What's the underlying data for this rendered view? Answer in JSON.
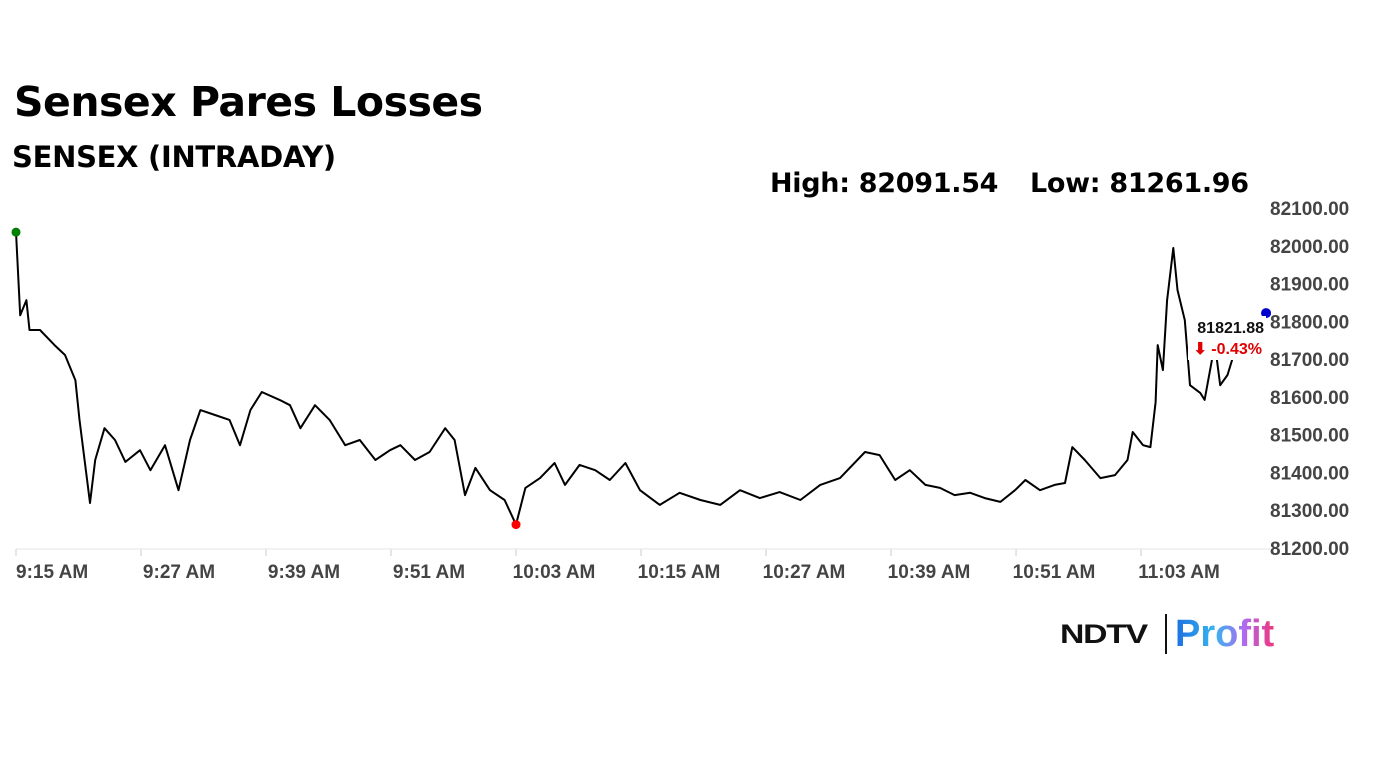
{
  "header": {
    "title": "Sensex Pares Losses",
    "subtitle": "SENSEX (INTRADAY)",
    "high_label": "High: 82091.54",
    "low_label": "Low: 81261.96"
  },
  "last_price": {
    "value": "81821.88",
    "change": "⬇ -0.43%"
  },
  "logo": {
    "brand": "NDTV",
    "product": "Profit"
  },
  "colors": {
    "line": "#000000",
    "open_dot": "#008000",
    "low_dot": "#ff0000",
    "last_dot": "#0000cc",
    "change": "#e00000"
  },
  "chart_data": {
    "type": "line",
    "title": "SENSEX (INTRADAY)",
    "xlabel": "",
    "ylabel": "",
    "x_unit": "minutes after 9:15 AM",
    "xlim": [
      0,
      120
    ],
    "ylim": [
      81200,
      82100
    ],
    "grid": false,
    "yticks": [
      "81200.00",
      "81300.00",
      "81400.00",
      "81500.00",
      "81600.00",
      "81700.00",
      "81800.00",
      "81900.00",
      "82000.00",
      "82100.00"
    ],
    "xticks": [
      "9:15 AM",
      "9:27 AM",
      "9:39 AM",
      "9:51 AM",
      "10:03 AM",
      "10:15 AM",
      "10:27 AM",
      "10:39 AM",
      "10:51 AM",
      "11:03 AM"
    ],
    "points": [
      [
        0,
        82036
      ],
      [
        0.4,
        81816
      ],
      [
        1.0,
        81856
      ],
      [
        1.3,
        81777
      ],
      [
        2.3,
        81777
      ],
      [
        3.7,
        81737
      ],
      [
        4.7,
        81711
      ],
      [
        5.7,
        81644
      ],
      [
        6.1,
        81539
      ],
      [
        7.1,
        81319
      ],
      [
        7.6,
        81433
      ],
      [
        8.5,
        81517
      ],
      [
        9.5,
        81486
      ],
      [
        10.5,
        81428
      ],
      [
        11.9,
        81459
      ],
      [
        12.9,
        81406
      ],
      [
        14.3,
        81472
      ],
      [
        15.6,
        81353
      ],
      [
        16.7,
        81486
      ],
      [
        17.7,
        81565
      ],
      [
        19.1,
        81552
      ],
      [
        20.5,
        81539
      ],
      [
        21.5,
        81472
      ],
      [
        22.5,
        81565
      ],
      [
        23.6,
        81613
      ],
      [
        25.3,
        81592
      ],
      [
        26.3,
        81578
      ],
      [
        27.3,
        81517
      ],
      [
        28.7,
        81578
      ],
      [
        30.1,
        81539
      ],
      [
        31.6,
        81472
      ],
      [
        33.0,
        81486
      ],
      [
        34.5,
        81433
      ],
      [
        35.9,
        81459
      ],
      [
        36.9,
        81472
      ],
      [
        38.3,
        81433
      ],
      [
        39.7,
        81454
      ],
      [
        41.2,
        81517
      ],
      [
        42.1,
        81486
      ],
      [
        43.1,
        81340
      ],
      [
        44.1,
        81412
      ],
      [
        45.5,
        81353
      ],
      [
        46.9,
        81327
      ],
      [
        48.0,
        81262
      ],
      [
        48.9,
        81359
      ],
      [
        50.3,
        81385
      ],
      [
        51.7,
        81425
      ],
      [
        52.7,
        81367
      ],
      [
        54.1,
        81420
      ],
      [
        55.6,
        81406
      ],
      [
        57.0,
        81380
      ],
      [
        58.5,
        81425
      ],
      [
        59.9,
        81353
      ],
      [
        61.8,
        81314
      ],
      [
        63.7,
        81346
      ],
      [
        65.7,
        81327
      ],
      [
        67.6,
        81314
      ],
      [
        69.5,
        81353
      ],
      [
        71.4,
        81332
      ],
      [
        73.3,
        81348
      ],
      [
        75.3,
        81327
      ],
      [
        77.2,
        81367
      ],
      [
        79.1,
        81385
      ],
      [
        81.5,
        81454
      ],
      [
        82.9,
        81446
      ],
      [
        84.4,
        81380
      ],
      [
        85.8,
        81406
      ],
      [
        87.3,
        81367
      ],
      [
        88.7,
        81359
      ],
      [
        90.1,
        81340
      ],
      [
        91.6,
        81346
      ],
      [
        93.0,
        81332
      ],
      [
        94.5,
        81322
      ],
      [
        95.9,
        81353
      ],
      [
        96.9,
        81380
      ],
      [
        98.3,
        81353
      ],
      [
        99.7,
        81367
      ],
      [
        100.7,
        81372
      ],
      [
        101.4,
        81467
      ],
      [
        102.6,
        81433
      ],
      [
        104.1,
        81385
      ],
      [
        105.5,
        81393
      ],
      [
        106.7,
        81433
      ],
      [
        107.2,
        81507
      ],
      [
        108.2,
        81472
      ],
      [
        108.9,
        81467
      ],
      [
        109.4,
        81586
      ],
      [
        109.6,
        81737
      ],
      [
        110.1,
        81671
      ],
      [
        110.5,
        81856
      ],
      [
        111.1,
        81994
      ],
      [
        111.5,
        81883
      ],
      [
        112.2,
        81803
      ],
      [
        112.7,
        81631
      ],
      [
        113.7,
        81610
      ],
      [
        114.1,
        81592
      ],
      [
        114.8,
        81697
      ],
      [
        115.1,
        81737
      ],
      [
        115.6,
        81631
      ],
      [
        116.3,
        81658
      ],
      [
        116.8,
        81703
      ],
      [
        117.5,
        81703
      ],
      [
        117.8,
        81705
      ]
    ],
    "markers": {
      "open": [
        0,
        82036
      ],
      "low": [
        48.0,
        81262
      ],
      "last": [
        120,
        81821.88
      ]
    }
  }
}
